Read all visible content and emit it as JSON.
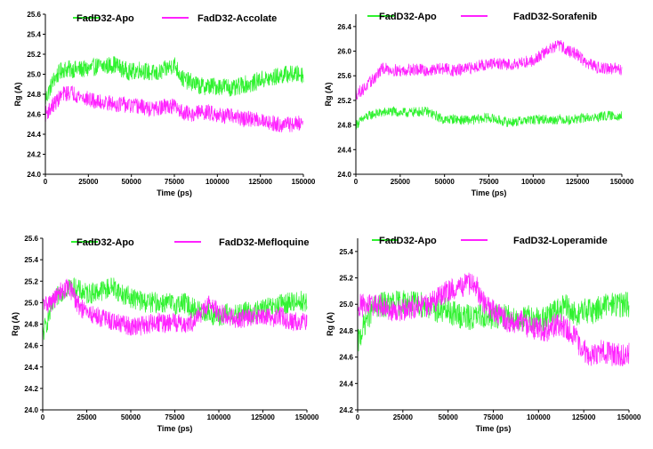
{
  "colors": {
    "apo": "#2ff22f",
    "ligand": "#ff22ff",
    "axis": "#000000"
  },
  "chart_data": [
    {
      "type": "line",
      "xlabel": "Time (ps)",
      "ylabel": "Rg (A)",
      "xlim": [
        0,
        150000
      ],
      "ylim": [
        24.0,
        25.6
      ],
      "xticks": [
        "0",
        "25000",
        "50000",
        "75000",
        "100000",
        "125000",
        "150000"
      ],
      "yticks": [
        "24.0",
        "24.2",
        "24.4",
        "24.6",
        "24.8",
        "25.0",
        "25.2",
        "25.4",
        "25.6"
      ],
      "legend_position": "top",
      "x": [
        0,
        5000,
        10000,
        15000,
        20000,
        25000,
        30000,
        35000,
        40000,
        45000,
        50000,
        55000,
        60000,
        65000,
        70000,
        75000,
        80000,
        85000,
        90000,
        95000,
        100000,
        105000,
        110000,
        115000,
        120000,
        125000,
        130000,
        135000,
        140000,
        145000,
        150000
      ],
      "series": [
        {
          "name": "FadD32-Apo",
          "color": "#2ff22f",
          "noise": 0.09,
          "values": [
            24.75,
            24.95,
            25.05,
            25.05,
            25.05,
            25.05,
            25.08,
            25.08,
            25.1,
            25.05,
            25.02,
            25.05,
            25.02,
            25.0,
            25.05,
            25.1,
            24.95,
            24.92,
            24.88,
            24.88,
            24.88,
            24.88,
            24.85,
            24.9,
            24.9,
            24.95,
            24.95,
            24.98,
            25.0,
            25.0,
            25.0
          ]
        },
        {
          "name": "FadD32-Accolate",
          "color": "#ff22ff",
          "noise": 0.08,
          "values": [
            24.6,
            24.7,
            24.8,
            24.82,
            24.78,
            24.75,
            24.72,
            24.72,
            24.7,
            24.7,
            24.68,
            24.68,
            24.65,
            24.65,
            24.68,
            24.68,
            24.62,
            24.6,
            24.62,
            24.62,
            24.6,
            24.58,
            24.58,
            24.55,
            24.55,
            24.55,
            24.52,
            24.5,
            24.5,
            24.5,
            24.52
          ]
        }
      ]
    },
    {
      "type": "line",
      "xlabel": "Time (ps)",
      "ylabel": "Rg (A)",
      "xlim": [
        0,
        150000
      ],
      "ylim": [
        24.0,
        26.6
      ],
      "xticks": [
        "0",
        "25000",
        "50000",
        "75000",
        "100000",
        "125000",
        "150000"
      ],
      "yticks": [
        "24.0",
        "24.4",
        "24.8",
        "25.2",
        "25.6",
        "26.0",
        "26.4"
      ],
      "legend_position": "top",
      "x": [
        0,
        5000,
        10000,
        15000,
        20000,
        25000,
        30000,
        35000,
        40000,
        45000,
        50000,
        55000,
        60000,
        65000,
        70000,
        75000,
        80000,
        85000,
        90000,
        95000,
        100000,
        105000,
        110000,
        115000,
        120000,
        125000,
        130000,
        135000,
        140000,
        145000,
        150000
      ],
      "series": [
        {
          "name": "FadD32-Apo",
          "color": "#2ff22f",
          "noise": 0.08,
          "values": [
            24.8,
            24.92,
            24.98,
            25.0,
            25.02,
            25.0,
            25.0,
            25.02,
            25.02,
            24.95,
            24.88,
            24.9,
            24.88,
            24.88,
            24.9,
            24.92,
            24.88,
            24.85,
            24.85,
            24.88,
            24.88,
            24.9,
            24.88,
            24.9,
            24.88,
            24.9,
            24.92,
            24.92,
            24.95,
            24.95,
            24.95
          ]
        },
        {
          "name": "FadD32-Sorafenib",
          "color": "#ff22ff",
          "noise": 0.1,
          "values": [
            25.3,
            25.4,
            25.55,
            25.72,
            25.7,
            25.68,
            25.7,
            25.7,
            25.68,
            25.7,
            25.72,
            25.68,
            25.7,
            25.72,
            25.78,
            25.78,
            25.8,
            25.78,
            25.8,
            25.82,
            25.85,
            25.95,
            26.05,
            26.1,
            26.0,
            25.95,
            25.8,
            25.75,
            25.72,
            25.72,
            25.7
          ]
        }
      ]
    },
    {
      "type": "line",
      "xlabel": "Time (ps)",
      "ylabel": "Rg (A)",
      "xlim": [
        0,
        150000
      ],
      "ylim": [
        24.0,
        25.6
      ],
      "xticks": [
        "0",
        "25000",
        "50000",
        "75000",
        "100000",
        "125000",
        "150000"
      ],
      "yticks": [
        "24.0",
        "24.2",
        "24.4",
        "24.6",
        "24.8",
        "25.0",
        "25.2",
        "25.4",
        "25.6"
      ],
      "legend_position": "top",
      "x": [
        0,
        5000,
        10000,
        15000,
        20000,
        25000,
        30000,
        35000,
        40000,
        45000,
        50000,
        55000,
        60000,
        65000,
        70000,
        75000,
        80000,
        85000,
        90000,
        95000,
        100000,
        105000,
        110000,
        115000,
        120000,
        125000,
        130000,
        135000,
        140000,
        145000,
        150000
      ],
      "series": [
        {
          "name": "FadD32-Apo",
          "color": "#2ff22f",
          "noise": 0.1,
          "values": [
            24.7,
            24.95,
            25.1,
            25.15,
            25.12,
            25.08,
            25.1,
            25.12,
            25.15,
            25.08,
            25.05,
            25.02,
            25.0,
            25.0,
            25.0,
            24.98,
            25.0,
            24.95,
            24.92,
            24.9,
            24.85,
            24.9,
            24.88,
            24.92,
            24.9,
            24.95,
            24.95,
            24.98,
            25.0,
            25.02,
            25.0
          ]
        },
        {
          "name": "FadD32-Mefloquine",
          "color": "#ff22ff",
          "noise": 0.09,
          "values": [
            24.98,
            25.0,
            25.1,
            25.15,
            24.98,
            24.9,
            24.88,
            24.85,
            24.82,
            24.8,
            24.78,
            24.78,
            24.8,
            24.82,
            24.8,
            24.82,
            24.8,
            24.82,
            24.9,
            25.0,
            24.9,
            24.88,
            24.85,
            24.85,
            24.88,
            24.88,
            24.85,
            24.88,
            24.82,
            24.82,
            24.82
          ]
        }
      ]
    },
    {
      "type": "line",
      "xlabel": "Time (ps)",
      "ylabel": "Rg (A)",
      "xlim": [
        0,
        150000
      ],
      "ylim": [
        24.2,
        25.5
      ],
      "xticks": [
        "0",
        "25000",
        "50000",
        "75000",
        "100000",
        "125000",
        "150000"
      ],
      "yticks": [
        "24.2",
        "24.4",
        "24.6",
        "24.8",
        "25.0",
        "25.2",
        "25.4"
      ],
      "legend_position": "top",
      "x": [
        0,
        5000,
        10000,
        15000,
        20000,
        25000,
        30000,
        35000,
        40000,
        45000,
        50000,
        55000,
        60000,
        65000,
        70000,
        75000,
        80000,
        85000,
        90000,
        95000,
        100000,
        105000,
        110000,
        115000,
        120000,
        125000,
        130000,
        135000,
        140000,
        145000,
        150000
      ],
      "series": [
        {
          "name": "FadD32-Apo",
          "color": "#2ff22f",
          "noise": 0.1,
          "values": [
            24.7,
            24.9,
            24.98,
            25.0,
            25.0,
            25.02,
            25.0,
            25.0,
            24.98,
            24.95,
            24.95,
            24.92,
            24.9,
            24.9,
            24.92,
            24.9,
            24.92,
            24.9,
            24.88,
            24.9,
            24.88,
            24.9,
            24.95,
            24.98,
            24.92,
            24.95,
            24.95,
            24.98,
            25.0,
            25.0,
            25.0
          ]
        },
        {
          "name": "FadD32-Loperamide",
          "color": "#ff22ff",
          "noise": 0.09,
          "values": [
            25.0,
            24.98,
            25.0,
            24.98,
            24.95,
            24.95,
            24.98,
            24.98,
            25.0,
            25.05,
            25.1,
            25.12,
            25.15,
            25.15,
            25.0,
            24.95,
            24.9,
            24.85,
            24.88,
            24.82,
            24.82,
            24.8,
            24.85,
            24.82,
            24.75,
            24.65,
            24.6,
            24.65,
            24.62,
            24.62,
            24.62
          ]
        }
      ]
    }
  ]
}
